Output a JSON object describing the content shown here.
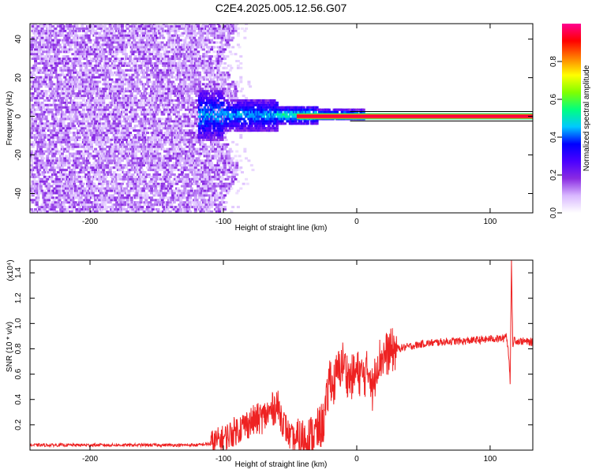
{
  "title": "C2E4.2025.005.12.56.G07",
  "chart_data": [
    {
      "type": "heatmap",
      "xlabel": "Height of straight line (km)",
      "ylabel": "Frequency (Hz)",
      "xlim": [
        -245,
        132
      ],
      "ylim": [
        -50,
        48
      ],
      "xticks": [
        -200,
        -100,
        0,
        100
      ],
      "yticks": [
        -40,
        -20,
        0,
        20,
        40
      ],
      "colorbar": {
        "label": "Normalized spectral amplitude",
        "range": [
          0,
          1
        ],
        "ticks": [
          0.0,
          0.2,
          0.4,
          0.6,
          0.8
        ],
        "colors": [
          "#ffffff",
          "#d9b8ff",
          "#8a2be2",
          "#4b00ff",
          "#0000ff",
          "#00c8ff",
          "#00ff80",
          "#80ff00",
          "#ffff00",
          "#ff8000",
          "#ff0000",
          "#ff0090"
        ]
      },
      "features": {
        "noise_region_x": [
          -245,
          -95
        ],
        "carrier_line_frequency_hz": 0,
        "carrier_line_start_km": -45
      }
    },
    {
      "type": "line",
      "xlabel": "Height of straight line (km)",
      "ylabel": "SNR (10 * v/v)",
      "y_multiplier": "(x10⁴)",
      "xlim": [
        -245,
        132
      ],
      "ylim": [
        0,
        1.5
      ],
      "xticks": [
        -200,
        -100,
        0,
        100
      ],
      "yticks": [
        0.2,
        0.4,
        0.6,
        0.8,
        1.0,
        1.2,
        1.4
      ],
      "color": "#ee2222",
      "series": [
        {
          "x": [
            -245,
            -200,
            -150,
            -120,
            -110,
            -100,
            -90,
            -80,
            -70,
            -65,
            -60,
            -55,
            -50,
            -45,
            -40,
            -35,
            -30,
            -25,
            -22,
            -20,
            -18,
            -15,
            -12,
            -10,
            -8,
            -5,
            0,
            5,
            10,
            12,
            15,
            20,
            25,
            30,
            40,
            50,
            60,
            70,
            80,
            90,
            95,
            100,
            105,
            110,
            112,
            114,
            115,
            116,
            117,
            118,
            120,
            125,
            132
          ],
          "y": [
            0.04,
            0.04,
            0.04,
            0.04,
            0.05,
            0.09,
            0.16,
            0.22,
            0.26,
            0.3,
            0.36,
            0.22,
            0.1,
            0.07,
            0.08,
            0.1,
            0.14,
            0.22,
            0.4,
            0.62,
            0.48,
            0.6,
            0.66,
            0.7,
            0.62,
            0.56,
            0.62,
            0.58,
            0.64,
            0.44,
            0.7,
            0.74,
            0.78,
            0.8,
            0.82,
            0.84,
            0.85,
            0.86,
            0.86,
            0.87,
            0.87,
            0.88,
            0.88,
            0.88,
            0.92,
            0.75,
            0.55,
            1.47,
            0.82,
            0.88,
            0.86,
            0.86,
            0.85
          ]
        }
      ]
    }
  ]
}
